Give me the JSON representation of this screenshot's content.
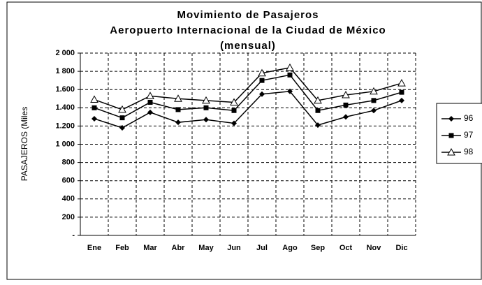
{
  "chart_data": {
    "type": "line",
    "title": [
      "Movimiento de Pasajeros",
      "Aeropuerto Internacional de la Ciudad de México",
      "(mensual)"
    ],
    "y_label": "PASAJEROS (Miles",
    "categories": [
      "Ene",
      "Feb",
      "Mar",
      "Abr",
      "May",
      "Jun",
      "Jul",
      "Ago",
      "Sep",
      "Oct",
      "Nov",
      "Dic"
    ],
    "series": [
      {
        "name": "96",
        "color": "#000000",
        "marker": "diamond",
        "values": [
          1280,
          1180,
          1350,
          1240,
          1270,
          1230,
          1550,
          1580,
          1210,
          1300,
          1370,
          1480
        ]
      },
      {
        "name": "97",
        "color": "#000000",
        "marker": "square",
        "values": [
          1400,
          1290,
          1460,
          1380,
          1400,
          1370,
          1700,
          1760,
          1370,
          1430,
          1480,
          1570
        ]
      },
      {
        "name": "98",
        "color": "#000000",
        "marker": "triangle",
        "values": [
          1490,
          1380,
          1530,
          1500,
          1480,
          1460,
          1780,
          1840,
          1480,
          1540,
          1580,
          1670
        ]
      }
    ],
    "ylim": [
      0,
      2000
    ],
    "yticks": [
      {
        "value": 0,
        "label": "-"
      },
      200,
      400,
      600,
      800,
      {
        "value": 1000,
        "label": "1 000"
      },
      {
        "value": 1200,
        "label": "1.200"
      },
      {
        "value": 1400,
        "label": "1.400"
      },
      {
        "value": 1600,
        "label": "1.600"
      },
      {
        "value": 1800,
        "label": "1 800"
      },
      {
        "value": 2000,
        "label": "2 000"
      }
    ],
    "grid": true,
    "legend": "right"
  }
}
